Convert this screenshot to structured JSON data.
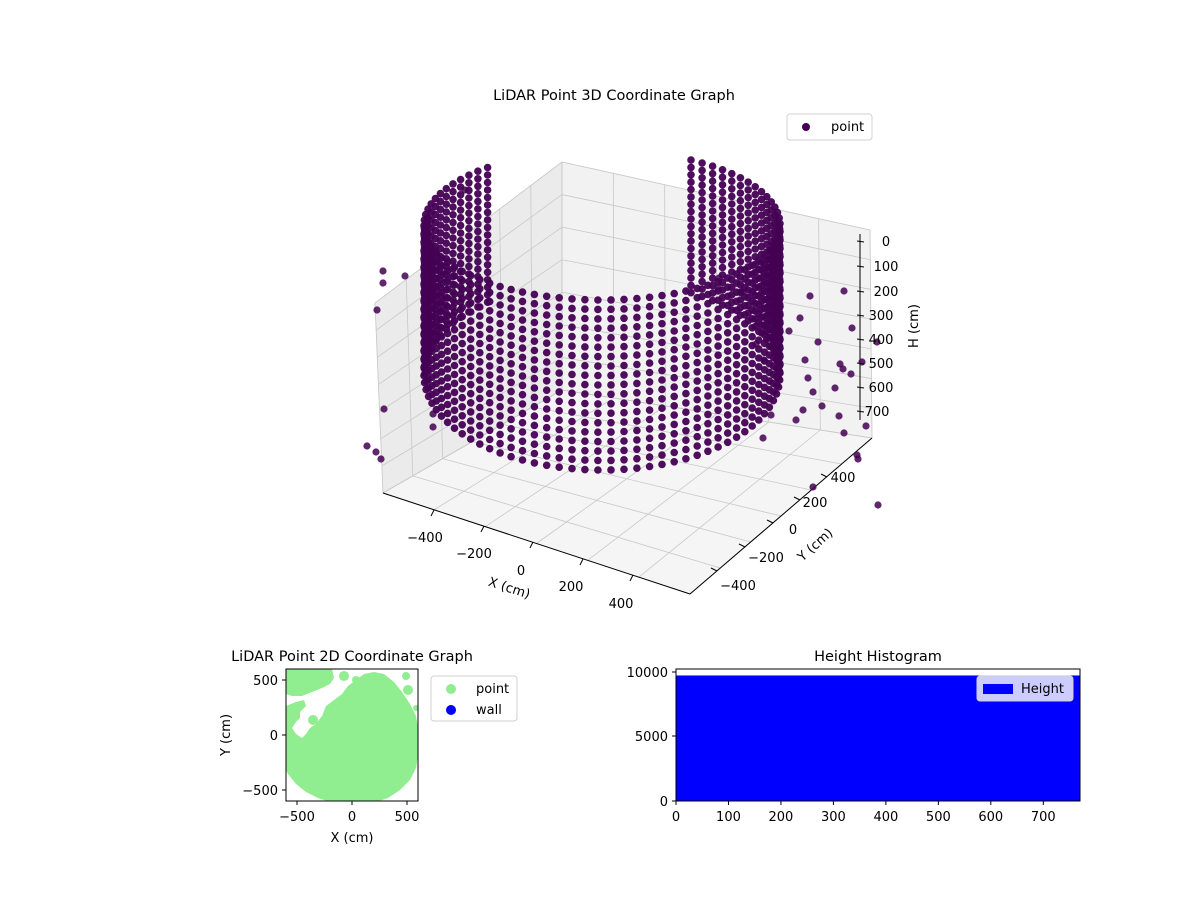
{
  "chart_data": [
    {
      "type": "scatter",
      "projection": "3d",
      "title": "LiDAR Point 3D Coordinate Graph",
      "xlabel": "X (cm)",
      "ylabel": "Y (cm)",
      "zlabel": "H (cm)",
      "xticks": [
        "−400",
        "−200",
        "0",
        "200",
        "400"
      ],
      "yticks": [
        "−400",
        "−200",
        "0",
        "200",
        "400"
      ],
      "zticks": [
        "0",
        "100",
        "200",
        "300",
        "400",
        "500",
        "600",
        "700"
      ],
      "xlim": [
        -520,
        520
      ],
      "ylim": [
        -520,
        520
      ],
      "zlim": [
        0,
        770
      ],
      "z_inverted": true,
      "grid": true,
      "legend": {
        "position": "top-right",
        "entries": [
          "point"
        ]
      },
      "series": [
        {
          "name": "point",
          "color": "#440154",
          "shape": "cylindrical wall of points",
          "radius_x": 470,
          "radius_y": 500,
          "h_range": [
            0,
            700
          ],
          "angular_coverage_deg": [
            -60,
            230
          ],
          "outlier_count": 60
        }
      ]
    },
    {
      "type": "scatter",
      "title": "LiDAR Point 2D Coordinate Graph",
      "xlabel": "X (cm)",
      "ylabel": "Y (cm)",
      "xticks": [
        "−500",
        "0",
        "500"
      ],
      "yticks": [
        "−500",
        "0",
        "500"
      ],
      "xlim": [
        -600,
        600
      ],
      "ylim": [
        -600,
        600
      ],
      "legend": {
        "position": "outside-right",
        "entries": [
          "point",
          "wall"
        ]
      },
      "series": [
        {
          "name": "point",
          "color": "#90ee90"
        },
        {
          "name": "wall",
          "color": "#0000ff"
        }
      ]
    },
    {
      "type": "bar",
      "title": "Height Histogram",
      "xticks": [
        "0",
        "100",
        "200",
        "300",
        "400",
        "500",
        "600",
        "700"
      ],
      "yticks": [
        "0",
        "5000",
        "10000"
      ],
      "xlim": [
        0,
        770
      ],
      "ylim": [
        0,
        10200
      ],
      "legend": {
        "position": "top-right",
        "entries": [
          "Height"
        ]
      },
      "series": [
        {
          "name": "Height",
          "color": "#0000ff",
          "bin_width": 1,
          "value": 9700,
          "x_range": [
            0,
            770
          ]
        }
      ]
    }
  ]
}
